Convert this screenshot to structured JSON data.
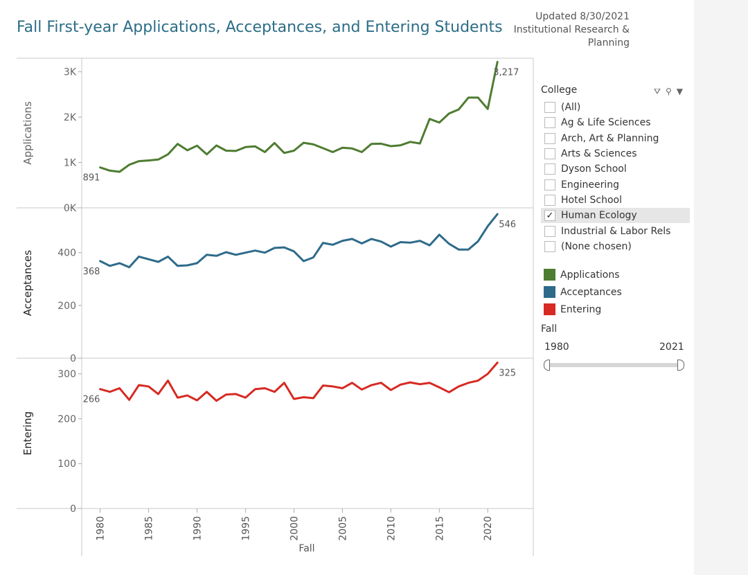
{
  "header": {
    "title": "Fall First-year Applications, Acceptances, and Entering Students",
    "updated_line1": "Updated 8/30/2021",
    "updated_line2": "Institutional Research &",
    "updated_line3": "Planning"
  },
  "filter": {
    "label": "College",
    "items": [
      {
        "label": "(All)",
        "checked": false
      },
      {
        "label": "Ag & Life Sciences",
        "checked": false
      },
      {
        "label": "Arch, Art & Planning",
        "checked": false
      },
      {
        "label": "Arts & Sciences",
        "checked": false
      },
      {
        "label": "Dyson School",
        "checked": false
      },
      {
        "label": "Engineering",
        "checked": false
      },
      {
        "label": "Hotel School",
        "checked": false
      },
      {
        "label": "Human Ecology",
        "checked": true
      },
      {
        "label": "Industrial & Labor Rels",
        "checked": false
      },
      {
        "label": "(None chosen)",
        "checked": false
      }
    ],
    "check_glyph": "✓"
  },
  "legend": {
    "items": [
      {
        "label": "Applications",
        "color": "#4e7c31"
      },
      {
        "label": "Acceptances",
        "color": "#2e6b8a"
      },
      {
        "label": "Entering",
        "color": "#d62a22"
      }
    ]
  },
  "slider": {
    "label": "Fall",
    "min_label": "1980",
    "max_label": "2021"
  },
  "chart_data": {
    "type": "line",
    "title": "Fall First-year Applications, Acceptances, and Entering Students",
    "xlabel": "Fall",
    "x": [
      1980,
      1981,
      1982,
      1983,
      1984,
      1985,
      1986,
      1987,
      1988,
      1989,
      1990,
      1991,
      1992,
      1993,
      1994,
      1995,
      1996,
      1997,
      1998,
      1999,
      2000,
      2001,
      2002,
      2003,
      2004,
      2005,
      2006,
      2007,
      2008,
      2009,
      2010,
      2011,
      2012,
      2013,
      2014,
      2015,
      2016,
      2017,
      2018,
      2019,
      2020,
      2021
    ],
    "x_ticks": [
      "1980",
      "1985",
      "1990",
      "1995",
      "2000",
      "2005",
      "2010",
      "2015",
      "2020"
    ],
    "xlim": [
      1978.1,
      2024.7
    ],
    "panels": [
      {
        "name": "Applications",
        "ylabel": "Applications",
        "color": "#4e7c31",
        "ylim": [
          0,
          3300
        ],
        "y_ticks": [
          0,
          1000,
          2000,
          3000
        ],
        "y_tick_labels": [
          "0K",
          "1K",
          "2K",
          "3K"
        ],
        "start_label": "891",
        "end_label": "3,217",
        "values": [
          891,
          820,
          795,
          950,
          1030,
          1045,
          1065,
          1180,
          1410,
          1270,
          1370,
          1180,
          1375,
          1260,
          1255,
          1340,
          1355,
          1230,
          1430,
          1210,
          1260,
          1435,
          1400,
          1315,
          1230,
          1325,
          1310,
          1230,
          1410,
          1415,
          1360,
          1380,
          1455,
          1420,
          1960,
          1880,
          2080,
          2170,
          2430,
          2430,
          2180,
          3217
        ]
      },
      {
        "name": "Acceptances",
        "ylabel": "Acceptances",
        "color": "#2e6b8a",
        "ylim": [
          0,
          570
        ],
        "y_ticks": [
          0,
          200,
          400
        ],
        "y_tick_labels": [
          "0",
          "200",
          "400"
        ],
        "start_label": "368",
        "end_label": "546",
        "values": [
          368,
          350,
          360,
          345,
          385,
          375,
          365,
          385,
          350,
          352,
          360,
          392,
          388,
          402,
          392,
          400,
          408,
          400,
          418,
          420,
          405,
          368,
          382,
          437,
          430,
          445,
          452,
          435,
          452,
          442,
          423,
          440,
          438,
          445,
          428,
          468,
          434,
          412,
          412,
          443,
          500,
          546
        ]
      },
      {
        "name": "Entering",
        "ylabel": "Entering",
        "color": "#d62a22",
        "ylim": [
          0,
          335
        ],
        "y_ticks": [
          0,
          100,
          200,
          300
        ],
        "y_tick_labels": [
          "0",
          "100",
          "200",
          "300"
        ],
        "start_label": "266",
        "end_label": "325",
        "values": [
          266,
          260,
          268,
          242,
          275,
          272,
          255,
          285,
          247,
          252,
          241,
          260,
          240,
          254,
          255,
          247,
          266,
          268,
          260,
          280,
          244,
          248,
          246,
          274,
          272,
          268,
          280,
          265,
          275,
          280,
          264,
          276,
          281,
          277,
          280,
          270,
          259,
          272,
          280,
          285,
          300,
          325
        ]
      }
    ]
  }
}
